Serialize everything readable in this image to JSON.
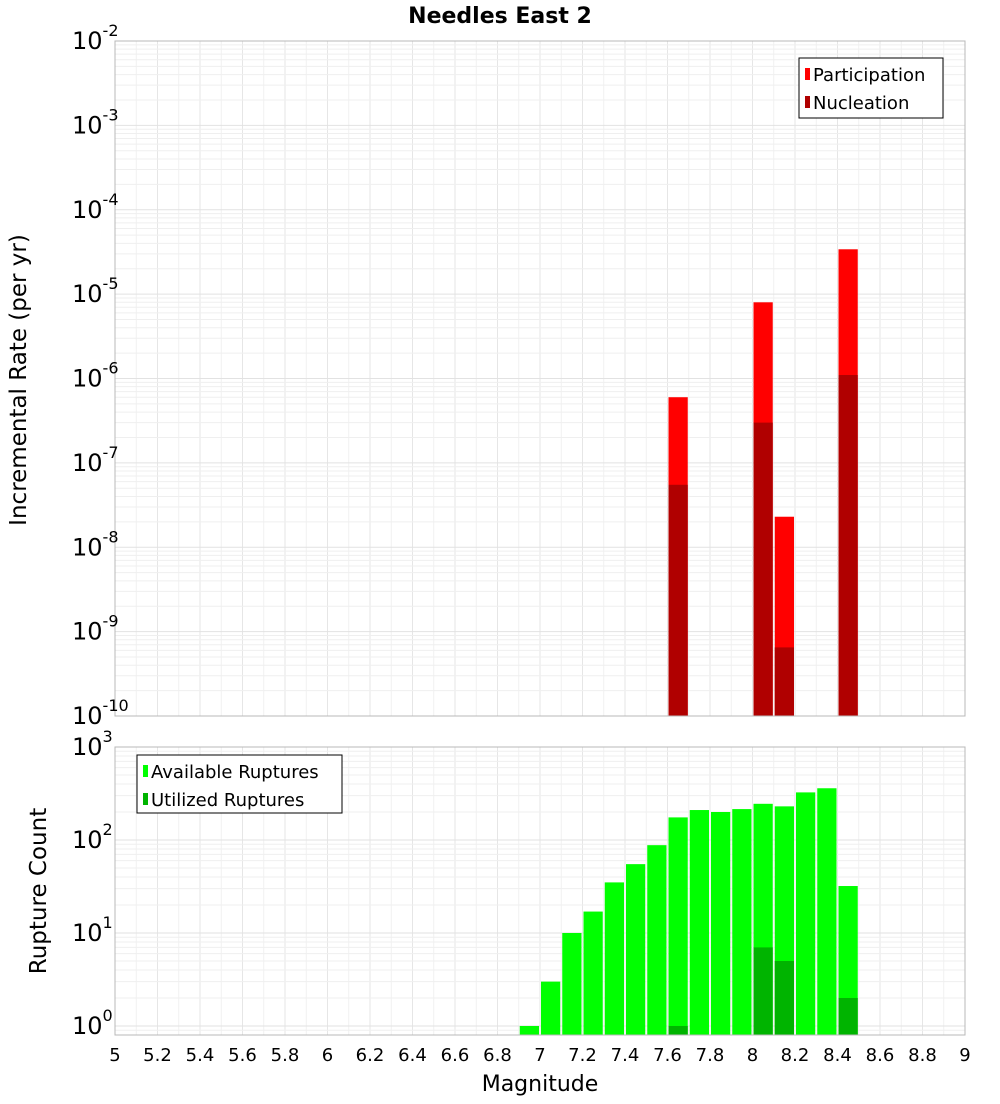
{
  "chart_data": [
    {
      "type": "bar",
      "title": "Needles East 2",
      "xlabel": "",
      "ylabel": "Incremental Rate (per yr)",
      "y_scale": "log",
      "xlim": [
        5,
        9
      ],
      "ylim": [
        1e-10,
        0.01
      ],
      "y_tick_exponents": [
        "-10",
        "-9",
        "-8",
        "-7",
        "-6",
        "-5",
        "-4",
        "-3",
        "-2"
      ],
      "y_tick_base": "10",
      "grid": true,
      "bar_width": 0.1,
      "legend_position": "top-right",
      "series": [
        {
          "name": "Participation",
          "color": "#ff0000",
          "x": [
            7.65,
            8.05,
            8.15,
            8.45
          ],
          "values": [
            6e-07,
            8e-06,
            2.3e-08,
            3.4e-05
          ]
        },
        {
          "name": "Nucleation",
          "color": "#b00000",
          "x": [
            7.65,
            8.05,
            8.15,
            8.45
          ],
          "values": [
            5.5e-08,
            3e-07,
            6.5e-10,
            1.1e-06
          ]
        }
      ]
    },
    {
      "type": "bar",
      "title": "",
      "xlabel": "Magnitude",
      "ylabel": "Rupture Count",
      "y_scale": "log",
      "xlim": [
        5,
        9
      ],
      "ylim": [
        0.8,
        1000
      ],
      "y_tick_exponents": [
        "0",
        "1",
        "2",
        "3"
      ],
      "y_tick_base": "10",
      "x_tick_labels": [
        "5",
        "5.2",
        "5.4",
        "5.6",
        "5.8",
        "6",
        "6.2",
        "6.4",
        "6.6",
        "6.8",
        "7",
        "7.2",
        "7.4",
        "7.6",
        "7.8",
        "8",
        "8.2",
        "8.4",
        "8.6",
        "8.8",
        "9"
      ],
      "grid": true,
      "bar_width": 0.1,
      "legend_position": "top-left",
      "series": [
        {
          "name": "Available Ruptures",
          "color": "#00ff00",
          "x": [
            6.95,
            7.05,
            7.15,
            7.25,
            7.35,
            7.45,
            7.55,
            7.65,
            7.75,
            7.85,
            7.95,
            8.05,
            8.15,
            8.25,
            8.35,
            8.45
          ],
          "values": [
            1,
            3,
            10,
            17,
            35,
            55,
            88,
            175,
            210,
            200,
            215,
            245,
            230,
            325,
            360,
            32
          ]
        },
        {
          "name": "Utilized Ruptures",
          "color": "#00b400",
          "x": [
            7.65,
            8.05,
            8.15,
            8.45
          ],
          "values": [
            1,
            7,
            5,
            2
          ]
        }
      ]
    }
  ]
}
